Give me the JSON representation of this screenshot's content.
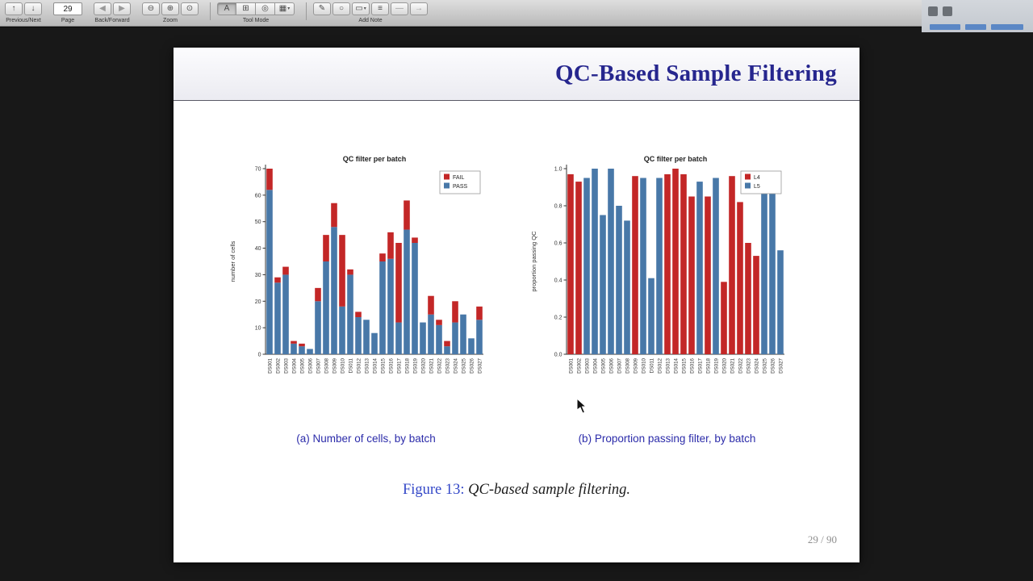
{
  "toolbar": {
    "page_value": "29",
    "group_labels": {
      "previous_next": "Previous/Next",
      "page": "Page",
      "back_forward": "Back/Forward",
      "zoom": "Zoom",
      "tool_mode": "Tool Mode",
      "add_note": "Add Note"
    },
    "icons": {
      "previous": "↑",
      "next": "↓",
      "back": "◀",
      "forward": "▶",
      "zoom_out": "⊖",
      "zoom_in": "⊕",
      "zoom_actual": "⊙",
      "tool_text": "A",
      "tool_move": "⊞",
      "tool_magnify": "◎",
      "tool_select": "▦",
      "note_pen": "✎",
      "note_circle": "○",
      "note_box": "▭",
      "note_highlight": "≡",
      "note_underline": "—",
      "note_line": "→",
      "caret": "▾"
    }
  },
  "slide": {
    "title": "QC-Based Sample Filtering",
    "caption_a": "(a) Number of cells, by batch",
    "caption_b": "(b) Proportion passing filter, by batch",
    "figure_label": "Figure 13:",
    "figure_text": "QC-based sample filtering.",
    "page_indicator": "29 / 90",
    "colors": {
      "title": "#26268e",
      "caption": "#2c2caa",
      "fail_red": "#c32727",
      "pass_blue": "#4878a8"
    }
  },
  "chart_data": [
    {
      "type": "bar",
      "stacked": true,
      "title": "QC filter per batch",
      "ylabel": "number of cells",
      "xlabel": "",
      "ylim": [
        0,
        70
      ],
      "ytick_values": [
        0,
        10,
        20,
        30,
        40,
        50,
        60,
        70
      ],
      "ytick_labels": [
        "0",
        "10",
        "20",
        "30",
        "40",
        "50",
        "60",
        "70"
      ],
      "grid": false,
      "legend_position": "top-right",
      "categories": [
        "DS001",
        "DS002",
        "DS003",
        "DS004",
        "DS005",
        "DS006",
        "DS007",
        "DS008",
        "DS009",
        "DS010",
        "DS011",
        "DS012",
        "DS013",
        "DS014",
        "DS015",
        "DS016",
        "DS017",
        "DS018",
        "DS019",
        "DS020",
        "DS021",
        "DS022",
        "DS023",
        "DS024",
        "DS025",
        "DS026",
        "DS027"
      ],
      "series": [
        {
          "name": "PASS",
          "color": "#4878a8",
          "values": [
            62,
            27,
            30,
            4,
            3,
            2,
            20,
            35,
            48,
            18,
            30,
            14,
            13,
            8,
            35,
            36,
            12,
            47,
            42,
            12,
            15,
            11,
            3,
            12,
            15,
            6,
            13
          ]
        },
        {
          "name": "FAIL",
          "color": "#c32727",
          "values": [
            8,
            2,
            3,
            1,
            1,
            0,
            5,
            10,
            9,
            27,
            2,
            2,
            0,
            0,
            3,
            10,
            30,
            11,
            2,
            0,
            7,
            2,
            2,
            8,
            0,
            0,
            5
          ]
        }
      ],
      "legend": [
        {
          "label": "FAIL",
          "color": "#c32727"
        },
        {
          "label": "PASS",
          "color": "#4878a8"
        }
      ]
    },
    {
      "type": "bar",
      "stacked": false,
      "title": "QC filter per batch",
      "ylabel": "proportion passing QC",
      "xlabel": "",
      "ylim": [
        0,
        1.0
      ],
      "ytick_values": [
        0.0,
        0.2,
        0.4,
        0.6,
        0.8,
        1.0
      ],
      "ytick_labels": [
        "0.0",
        "0.2",
        "0.4",
        "0.6",
        "0.8",
        "1.0"
      ],
      "grid": false,
      "legend_position": "top-right",
      "categories": [
        "DS001",
        "DS002",
        "DS003",
        "DS004",
        "DS005",
        "DS006",
        "DS007",
        "DS008",
        "DS009",
        "DS010",
        "DS011",
        "DS012",
        "DS013",
        "DS014",
        "DS015",
        "DS016",
        "DS017",
        "DS018",
        "DS019",
        "DS020",
        "DS021",
        "DS022",
        "DS023",
        "DS024",
        "DS025",
        "DS026",
        "DS027"
      ],
      "values": [
        0.97,
        0.93,
        0.95,
        1.0,
        0.75,
        1.0,
        0.8,
        0.72,
        0.96,
        0.95,
        0.41,
        0.95,
        0.97,
        1.0,
        0.97,
        0.85,
        0.93,
        0.85,
        0.95,
        0.39,
        0.96,
        0.82,
        0.6,
        0.53,
        0.97,
        0.95,
        0.56
      ],
      "groups": [
        "L4",
        "L4",
        "L5",
        "L5",
        "L5",
        "L5",
        "L5",
        "L5",
        "L4",
        "L5",
        "L5",
        "L5",
        "L4",
        "L4",
        "L4",
        "L4",
        "L5",
        "L4",
        "L5",
        "L4",
        "L4",
        "L4",
        "L4",
        "L4",
        "L5",
        "L5",
        "L5"
      ],
      "group_colors": {
        "L4": "#c32727",
        "L5": "#4878a8"
      },
      "legend": [
        {
          "label": "L4",
          "color": "#c32727"
        },
        {
          "label": "L5",
          "color": "#4878a8"
        }
      ]
    }
  ]
}
